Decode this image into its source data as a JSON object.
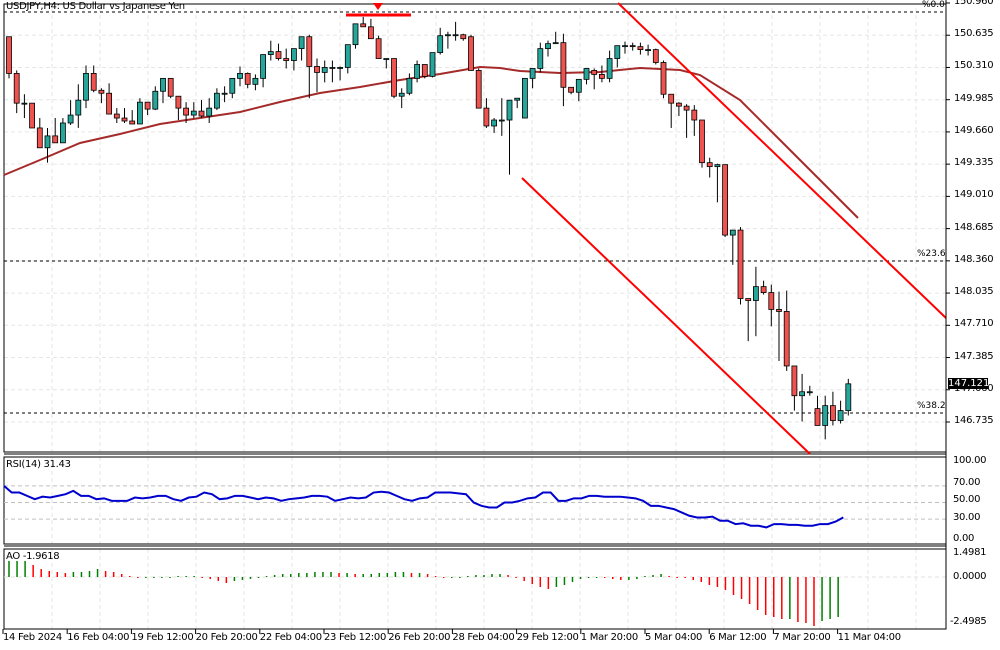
{
  "header": {
    "title": "USDJPY,H4: US Dollar vs Japanese Yen"
  },
  "colors": {
    "bull": "#26a69a",
    "bear": "#ef5350",
    "ma": "#a52a2a",
    "channel": "#ff0000",
    "rsi": "#0000cd",
    "ao_up": "#008000",
    "ao_down": "#ff0000",
    "grid": "#e6e6e6",
    "axis": "#000000"
  },
  "price_axis": {
    "ticks": [
      "150.960",
      "150.635",
      "150.310",
      "149.985",
      "149.660",
      "149.335",
      "149.010",
      "148.685",
      "148.360",
      "148.035",
      "147.710",
      "147.385",
      "147.060",
      "146.735"
    ],
    "current_price": "147.121"
  },
  "fibo": {
    "levels": [
      {
        "label": "%0.0",
        "price": 150.87
      },
      {
        "label": "%23.6",
        "price": 148.36
      },
      {
        "label": "%38.2",
        "price": 146.81
      }
    ]
  },
  "rsi": {
    "label": "RSI(14) 31.43",
    "ticks": [
      "100.00",
      "70.00",
      "50.00",
      "30.00",
      "0.00"
    ]
  },
  "ao": {
    "label": "AO -1.9618",
    "ticks": [
      "1.4981",
      "0.0000",
      "-2.4985"
    ]
  },
  "time_axis": {
    "labels": [
      "14 Feb 2024",
      "16 Feb 04:00",
      "19 Feb 12:00",
      "20 Feb 20:00",
      "22 Feb 04:00",
      "23 Feb 12:00",
      "26 Feb 20:00",
      "28 Feb 04:00",
      "29 Feb 12:00",
      "1 Mar 20:00",
      "5 Mar 04:00",
      "6 Mar 12:00",
      "7 Mar 20:00",
      "11 Mar 04:00"
    ]
  },
  "chart_data": {
    "type": "candlestick",
    "title": "USDJPY,H4: US Dollar vs Japanese Yen",
    "symbol": "USDJPY",
    "timeframe": "H4",
    "ylim": [
      146.5,
      150.96
    ],
    "current_price": 147.121,
    "indicators": [
      "Moving Average",
      "RSI(14)",
      "Awesome Oscillator",
      "Fibonacci Retracement",
      "Descending Channel"
    ],
    "candles": [
      [
        150.62,
        150.62,
        150.2,
        150.25
      ],
      [
        150.25,
        150.28,
        149.85,
        149.95
      ],
      [
        149.95,
        150.04,
        149.8,
        149.95
      ],
      [
        149.95,
        149.95,
        149.8,
        149.7
      ],
      [
        149.7,
        149.8,
        149.55,
        149.5
      ],
      [
        149.5,
        149.7,
        149.35,
        149.62
      ],
      [
        149.62,
        149.8,
        149.56,
        149.55
      ],
      [
        149.55,
        149.8,
        149.58,
        149.75
      ],
      [
        149.75,
        149.98,
        149.73,
        149.83
      ],
      [
        149.83,
        150.14,
        149.7,
        149.98
      ],
      [
        149.98,
        150.33,
        149.9,
        150.25
      ],
      [
        150.25,
        150.33,
        150.06,
        150.08
      ],
      [
        150.08,
        150.1,
        149.95,
        150.05
      ],
      [
        150.05,
        150.15,
        149.85,
        149.84
      ],
      [
        149.84,
        149.9,
        149.75,
        149.8
      ],
      [
        149.8,
        149.9,
        149.75,
        149.77
      ],
      [
        149.77,
        149.88,
        149.74,
        149.74
      ],
      [
        149.74,
        150.0,
        149.75,
        149.96
      ],
      [
        149.96,
        149.95,
        149.83,
        149.89
      ],
      [
        149.89,
        150.12,
        149.88,
        150.07
      ],
      [
        150.07,
        150.15,
        149.95,
        150.2
      ],
      [
        150.2,
        150.18,
        150.0,
        150.02
      ],
      [
        150.02,
        150.0,
        149.78,
        149.9
      ],
      [
        149.9,
        149.96,
        149.75,
        149.83
      ],
      [
        149.83,
        149.96,
        149.8,
        149.87
      ],
      [
        149.87,
        149.98,
        149.8,
        149.82
      ],
      [
        149.82,
        150.0,
        149.75,
        149.9
      ],
      [
        149.9,
        150.1,
        149.88,
        150.05
      ],
      [
        150.05,
        150.12,
        149.96,
        150.05
      ],
      [
        150.05,
        150.2,
        150.0,
        150.2
      ],
      [
        150.2,
        150.32,
        150.12,
        150.25
      ],
      [
        150.25,
        150.26,
        150.1,
        150.14
      ],
      [
        150.14,
        150.24,
        150.08,
        150.2
      ],
      [
        150.2,
        150.36,
        150.11,
        150.44
      ],
      [
        150.44,
        150.58,
        150.38,
        150.47
      ],
      [
        150.47,
        150.55,
        150.38,
        150.4
      ],
      [
        150.4,
        150.5,
        150.3,
        150.38
      ],
      [
        150.38,
        150.45,
        150.28,
        150.5
      ],
      [
        150.5,
        150.62,
        150.38,
        150.62
      ],
      [
        150.62,
        150.64,
        150.0,
        150.32
      ],
      [
        150.32,
        150.4,
        150.06,
        150.26
      ],
      [
        150.26,
        150.38,
        150.16,
        150.31
      ],
      [
        150.31,
        150.38,
        150.16,
        150.31
      ],
      [
        150.31,
        150.32,
        150.18,
        150.31
      ],
      [
        150.31,
        150.54,
        150.25,
        150.54
      ],
      [
        150.54,
        150.7,
        150.5,
        150.75
      ],
      [
        150.75,
        150.82,
        150.73,
        150.72
      ],
      [
        150.72,
        150.8,
        150.65,
        150.6
      ],
      [
        150.6,
        150.63,
        150.4,
        150.4
      ],
      [
        150.4,
        150.4,
        150.3,
        150.4
      ],
      [
        150.4,
        150.4,
        150.0,
        150.02
      ],
      [
        150.02,
        150.1,
        149.9,
        150.05
      ],
      [
        150.05,
        150.25,
        150.03,
        150.2
      ],
      [
        150.2,
        150.38,
        150.16,
        150.34
      ],
      [
        150.34,
        150.33,
        150.2,
        150.22
      ],
      [
        150.22,
        150.46,
        150.21,
        150.46
      ],
      [
        150.46,
        150.71,
        150.44,
        150.63
      ],
      [
        150.63,
        150.67,
        150.5,
        150.64
      ],
      [
        150.64,
        150.77,
        150.58,
        150.64
      ],
      [
        150.64,
        150.65,
        150.58,
        150.6
      ],
      [
        150.62,
        150.64,
        150.28,
        150.28
      ],
      [
        150.28,
        150.3,
        149.95,
        149.9
      ],
      [
        149.9,
        150.0,
        149.7,
        149.72
      ],
      [
        149.72,
        149.8,
        149.65,
        149.78
      ],
      [
        149.78,
        150.0,
        149.62,
        149.78
      ],
      [
        149.78,
        149.98,
        149.23,
        149.98
      ],
      [
        149.98,
        150.0,
        149.9,
        150.0
      ],
      [
        149.8,
        150.2,
        149.85,
        150.2
      ],
      [
        150.2,
        150.3,
        150.1,
        150.3
      ],
      [
        150.3,
        150.56,
        150.26,
        150.5
      ],
      [
        150.5,
        150.58,
        150.42,
        150.55
      ],
      [
        150.55,
        150.67,
        150.55,
        150.56
      ],
      [
        150.56,
        150.65,
        149.92,
        150.11
      ],
      [
        150.11,
        150.1,
        150.04,
        150.06
      ],
      [
        150.06,
        150.16,
        149.97,
        150.19
      ],
      [
        150.19,
        150.3,
        150.14,
        150.3
      ],
      [
        150.28,
        150.3,
        150.09,
        150.24
      ],
      [
        150.24,
        150.33,
        150.16,
        150.2
      ],
      [
        150.2,
        150.48,
        150.16,
        150.4
      ],
      [
        150.4,
        150.52,
        150.31,
        150.53
      ],
      [
        150.53,
        150.57,
        150.45,
        150.53
      ],
      [
        150.53,
        150.56,
        150.48,
        150.52
      ],
      [
        150.52,
        150.56,
        150.44,
        150.49
      ],
      [
        150.49,
        150.54,
        150.43,
        150.49
      ],
      [
        150.49,
        150.5,
        150.34,
        150.36
      ],
      [
        150.36,
        150.38,
        150.0,
        150.04
      ],
      [
        150.04,
        150.0,
        149.7,
        149.95
      ],
      [
        149.95,
        149.96,
        149.82,
        149.92
      ],
      [
        149.92,
        149.94,
        149.6,
        149.88
      ],
      [
        149.88,
        149.93,
        149.62,
        149.78
      ],
      [
        149.78,
        149.76,
        149.3,
        149.35
      ],
      [
        149.35,
        149.4,
        149.2,
        149.31
      ],
      [
        149.31,
        149.34,
        148.95,
        149.33
      ],
      [
        149.33,
        149.3,
        148.6,
        148.62
      ],
      [
        148.62,
        148.65,
        148.32,
        148.67
      ],
      [
        148.67,
        148.7,
        147.92,
        147.98
      ],
      [
        147.98,
        147.97,
        147.55,
        147.96
      ],
      [
        147.96,
        148.3,
        147.6,
        148.1
      ],
      [
        148.1,
        148.16,
        148.02,
        148.04
      ],
      [
        148.04,
        148.12,
        147.7,
        147.87
      ],
      [
        147.87,
        148.05,
        147.35,
        147.85
      ],
      [
        147.85,
        148.06,
        147.25,
        147.3
      ],
      [
        147.3,
        147.24,
        146.85,
        147.0
      ],
      [
        147.0,
        147.22,
        146.74,
        147.04
      ],
      [
        147.04,
        147.1,
        147.0,
        147.04
      ],
      [
        146.87,
        147.0,
        146.7,
        146.7
      ],
      [
        146.7,
        147.0,
        146.56,
        146.9
      ],
      [
        146.9,
        147.04,
        146.7,
        146.75
      ],
      [
        146.75,
        146.95,
        146.72,
        146.85
      ],
      [
        146.85,
        147.17,
        146.8,
        147.12
      ]
    ]
  }
}
